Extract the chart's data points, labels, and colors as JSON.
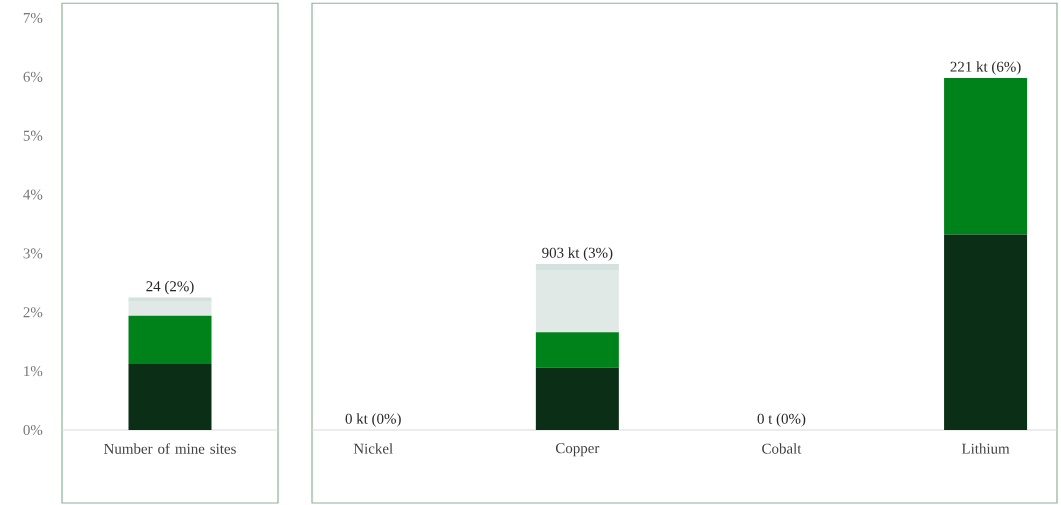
{
  "chart_data": [
    {
      "type": "bar",
      "stacked": true,
      "categories": [
        "Number of mine sites"
      ],
      "series": [
        {
          "color": "#0a2e16",
          "values": [
            1.12
          ]
        },
        {
          "color": "#00821b",
          "values": [
            0.82
          ]
        },
        {
          "color": "#e1e9e6",
          "values": [
            0.24
          ]
        },
        {
          "color": "#d3e2df",
          "values": [
            0.07
          ]
        }
      ],
      "totals": [
        "24 (2%)"
      ],
      "ylim": [
        0,
        7.25
      ],
      "yticks": [
        {
          "value": 0,
          "label": "0%"
        },
        {
          "value": 1,
          "label": "1%"
        },
        {
          "value": 2,
          "label": "2%"
        },
        {
          "value": 3,
          "label": "3%"
        },
        {
          "value": 4,
          "label": "4%"
        },
        {
          "value": 5,
          "label": "5%"
        },
        {
          "value": 6,
          "label": "6%"
        },
        {
          "value": 7,
          "label": "7%"
        }
      ],
      "grid": false
    },
    {
      "type": "bar",
      "stacked": true,
      "categories": [
        "Nickel",
        "Copper",
        "Cobalt",
        "Lithium"
      ],
      "series": [
        {
          "color": "#0a2e16",
          "values": [
            0,
            1.06,
            0,
            3.32
          ]
        },
        {
          "color": "#00821b",
          "values": [
            0,
            0.6,
            0,
            2.66
          ]
        },
        {
          "color": "#e1e9e6",
          "values": [
            0,
            1.06,
            0,
            0
          ]
        },
        {
          "color": "#d3e2df",
          "values": [
            0,
            0.1,
            0,
            0
          ]
        }
      ],
      "totals": [
        "0 kt (0%)",
        "903 kt (3%)",
        "0 t (0%)",
        "221 kt (6%)"
      ],
      "ylim": [
        0,
        7.25
      ],
      "yticks": [
        {
          "value": 0,
          "label": null
        },
        {
          "value": 1,
          "label": null
        },
        {
          "value": 2,
          "label": null
        },
        {
          "value": 3,
          "label": null
        },
        {
          "value": 4,
          "label": null
        },
        {
          "value": 5,
          "label": null
        },
        {
          "value": 6,
          "label": null
        },
        {
          "value": 7,
          "label": null
        }
      ],
      "tick_labels": "x",
      "grid": false
    }
  ]
}
